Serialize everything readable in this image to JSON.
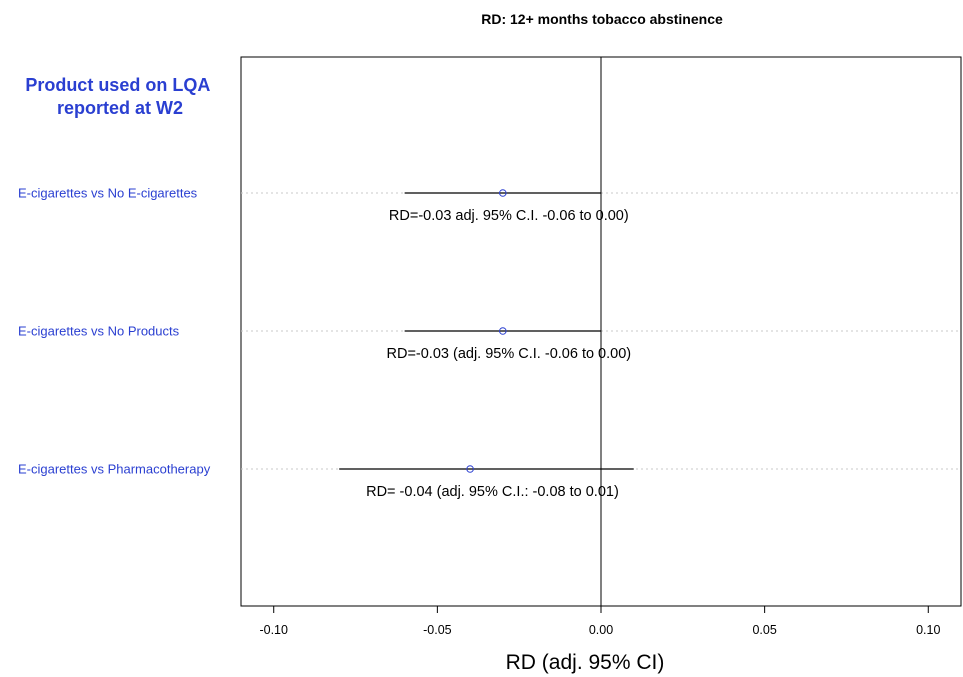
{
  "chart_data": {
    "type": "forest",
    "title": "RD: 12+ months tobacco abstinence",
    "group_header": [
      "Product used on LQA",
      "reported at W2"
    ],
    "xlabel": "RD (adj. 95% CI)",
    "xlim": [
      -0.11,
      0.11
    ],
    "xticks": [
      -0.1,
      -0.05,
      0.0,
      0.05,
      0.1
    ],
    "xtick_labels": [
      "-0.10",
      "-0.05",
      "0.00",
      "0.05",
      "0.10"
    ],
    "reference_line": 0.0,
    "rows": [
      {
        "label": "E-cigarettes vs No E-cigarettes",
        "estimate": -0.03,
        "lower": -0.06,
        "upper": 0.0,
        "annotation": "RD=-0.03 adj. 95% C.I. -0.06 to 0.00)"
      },
      {
        "label": "E-cigarettes vs No Products",
        "estimate": -0.03,
        "lower": -0.06,
        "upper": 0.0,
        "annotation": "RD=-0.03 (adj. 95% C.I. -0.06 to 0.00)"
      },
      {
        "label": "E-cigarettes vs Pharmacotherapy",
        "estimate": -0.04,
        "lower": -0.08,
        "upper": 0.01,
        "annotation": "RD= -0.04 (adj. 95% C.I.: -0.08 to 0.01)"
      }
    ],
    "colors": {
      "labels": "#2a3fd1",
      "point": "#2a3fd1",
      "guide": "#c8c8c8",
      "line": "#000000"
    }
  }
}
